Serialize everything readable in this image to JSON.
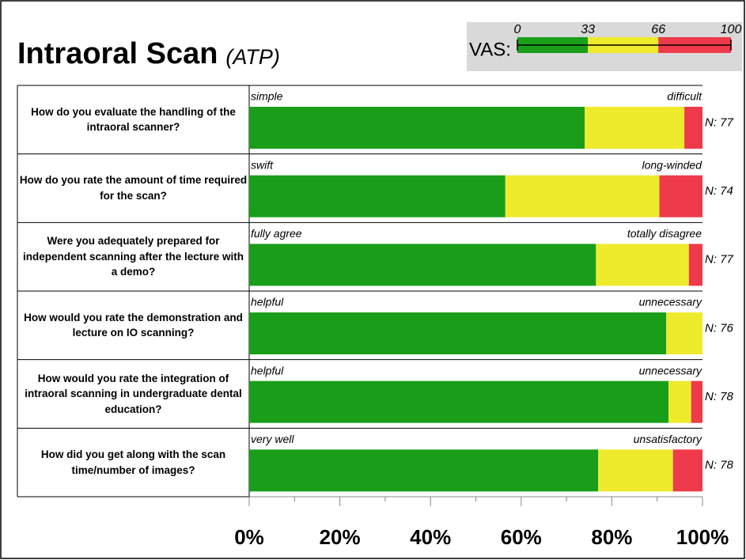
{
  "chart_data": {
    "type": "stacked-barh",
    "title": "Intraoral Scan",
    "subtitle": "(ATP)",
    "categories": [
      "How do you evaluate the handling of the intraoral scanner?",
      "How do you rate the amount of time required for the scan?",
      "Were you adequately prepared for independent scanning after the lecture with a demo?",
      "How would you rate the demonstration and lecture on IO scanning?",
      "How would you rate the integration of intraoral scanning in undergraduate dental education?",
      "How did you get along with the scan time/number of images?"
    ],
    "left_labels": [
      "simple",
      "swift",
      "fully agree",
      "helpful",
      "helpful",
      "very well"
    ],
    "right_labels": [
      "difficult",
      "long-winded",
      "totally disagree",
      "unnecessary",
      "unnecessary",
      "unsatisfactory"
    ],
    "n_labels": [
      "N: 77",
      "N: 74",
      "N: 77",
      "N: 76",
      "N: 78",
      "N: 78"
    ],
    "series": [
      {
        "color": "#1a9e1a",
        "values": [
          74,
          56.5,
          76.5,
          92,
          92.5,
          77
        ]
      },
      {
        "color": "#eeea2c",
        "values": [
          22,
          34,
          20.5,
          8,
          5,
          16.5
        ]
      },
      {
        "color": "#ee3a4a",
        "values": [
          4,
          9.5,
          3,
          0,
          2.5,
          6.5
        ]
      }
    ],
    "xlim": [
      0,
      100
    ],
    "xticks": [
      {
        "value": 0,
        "label": "0%"
      },
      {
        "value": 20,
        "label": "20%"
      },
      {
        "value": 40,
        "label": "40%"
      },
      {
        "value": 60,
        "label": "60%"
      },
      {
        "value": 80,
        "label": "80%"
      },
      {
        "value": 100,
        "label": "100%"
      }
    ],
    "xminor_ticks": [
      10,
      30,
      50,
      70,
      90
    ],
    "legend": {
      "label": "VAS:",
      "ticks": [
        0,
        33,
        66,
        100
      ]
    }
  }
}
